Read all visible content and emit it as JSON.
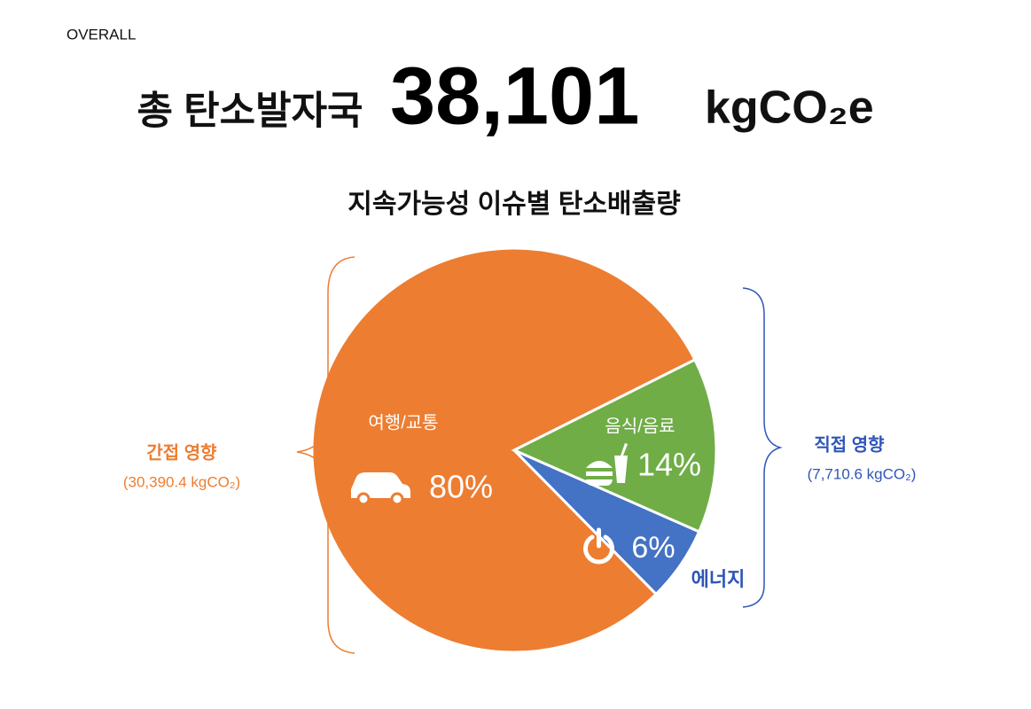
{
  "chart_data": {
    "type": "pie",
    "header": "OVERALL",
    "headline": "총 탄소발자국",
    "total": "38,101",
    "unit": "kgCO₂e",
    "title": "지속가능성 이슈별 탄소배출량",
    "categories": [
      "여행/교통",
      "음식/음료",
      "에너지"
    ],
    "values": [
      80,
      14,
      6
    ],
    "value_labels": [
      "80%",
      "14%",
      "6%"
    ],
    "colors": [
      "#ED7D31",
      "#70AD47",
      "#4472C4"
    ],
    "groups": [
      {
        "name": "간접 영향",
        "amount": "(30,390.4 kgCO₂)",
        "color": "#ED7D31"
      },
      {
        "name": "직접 영향",
        "amount": "(7,710.6 kgCO₂)",
        "color": "#2F55B8"
      }
    ]
  }
}
